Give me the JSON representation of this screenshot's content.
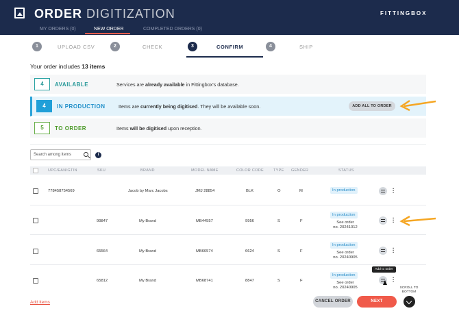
{
  "header": {
    "title_bold": "ORDER",
    "title_light": "DIGITIZATION",
    "brand": "FITTINGBOX",
    "nav": [
      "MY ORDERS (0)",
      "NEW ORDER",
      "COMPLETED ORDERS (0)"
    ],
    "active_nav": "NEW ORDER"
  },
  "steps": [
    {
      "num": "1",
      "label": "UPLOAD CSV"
    },
    {
      "num": "2",
      "label": "CHECK"
    },
    {
      "num": "3",
      "label": "CONFIRM",
      "current": true
    },
    {
      "num": "4",
      "label": "SHIP"
    }
  ],
  "summary": {
    "prefix": "Your order includes ",
    "count": "13 items"
  },
  "cards": [
    {
      "count": "4",
      "label": "AVAILABLE",
      "pre": "Services are ",
      "bold": "already available",
      "post": " in Fittingbox's database."
    },
    {
      "count": "4",
      "label": "IN PRODUCTION",
      "pre": "Items are ",
      "bold": "currently being digitised",
      "post": ". They will be available soon.",
      "button": "ADD ALL TO ORDER"
    },
    {
      "count": "5",
      "label": "TO ORDER",
      "pre": "Items ",
      "bold": "will be digitised",
      "post": " upon reception."
    }
  ],
  "search": {
    "placeholder": "Search among items"
  },
  "table": {
    "headers": [
      "UPC/EAN/GTIN",
      "SKU",
      "BRAND",
      "MODEL NAME",
      "COLOR CODE",
      "TYPE",
      "GENDER",
      "STATUS"
    ],
    "rows": [
      {
        "upc": "778458754569",
        "sku": "",
        "brand": "Jacob by Marc Jacobs",
        "model": "JMJ 28854",
        "color": "BLK",
        "type": "O",
        "gender": "M",
        "status": "In production",
        "see_order": "",
        "order_no": ""
      },
      {
        "upc": "",
        "sku": "99847",
        "brand": "My Brand",
        "model": "MB44557",
        "color": "9956",
        "type": "S",
        "gender": "F",
        "status": "In production",
        "see_order": "See order",
        "order_no": "no. 20241012"
      },
      {
        "upc": "",
        "sku": "65564",
        "brand": "My Brand",
        "model": "MB66574",
        "color": "6624",
        "type": "S",
        "gender": "F",
        "status": "In production",
        "see_order": "See order",
        "order_no": "no. 20240905"
      },
      {
        "upc": "",
        "sku": "65812",
        "brand": "My Brand",
        "model": "MB68741",
        "color": "8847",
        "type": "S",
        "gender": "F",
        "status": "In production",
        "see_order": "See order",
        "order_no": "no. 20240905"
      }
    ]
  },
  "tooltip": "Add to order",
  "footer": {
    "add_items": "Add items",
    "cancel": "CANCEL ORDER",
    "next": "NEXT",
    "scroll_to_bottom": "SCROLL TO BOTTOM"
  },
  "colors": {
    "header": "#1c2b4c",
    "accent": "#f05a4a",
    "annotation_arrow": "#f5a623",
    "highlight": "#e3f3fb"
  },
  "icons": [
    "image-icon",
    "search-icon",
    "info-icon",
    "add-to-order-icon",
    "more-icon",
    "chevron-down-icon",
    "annotation-arrow"
  ]
}
